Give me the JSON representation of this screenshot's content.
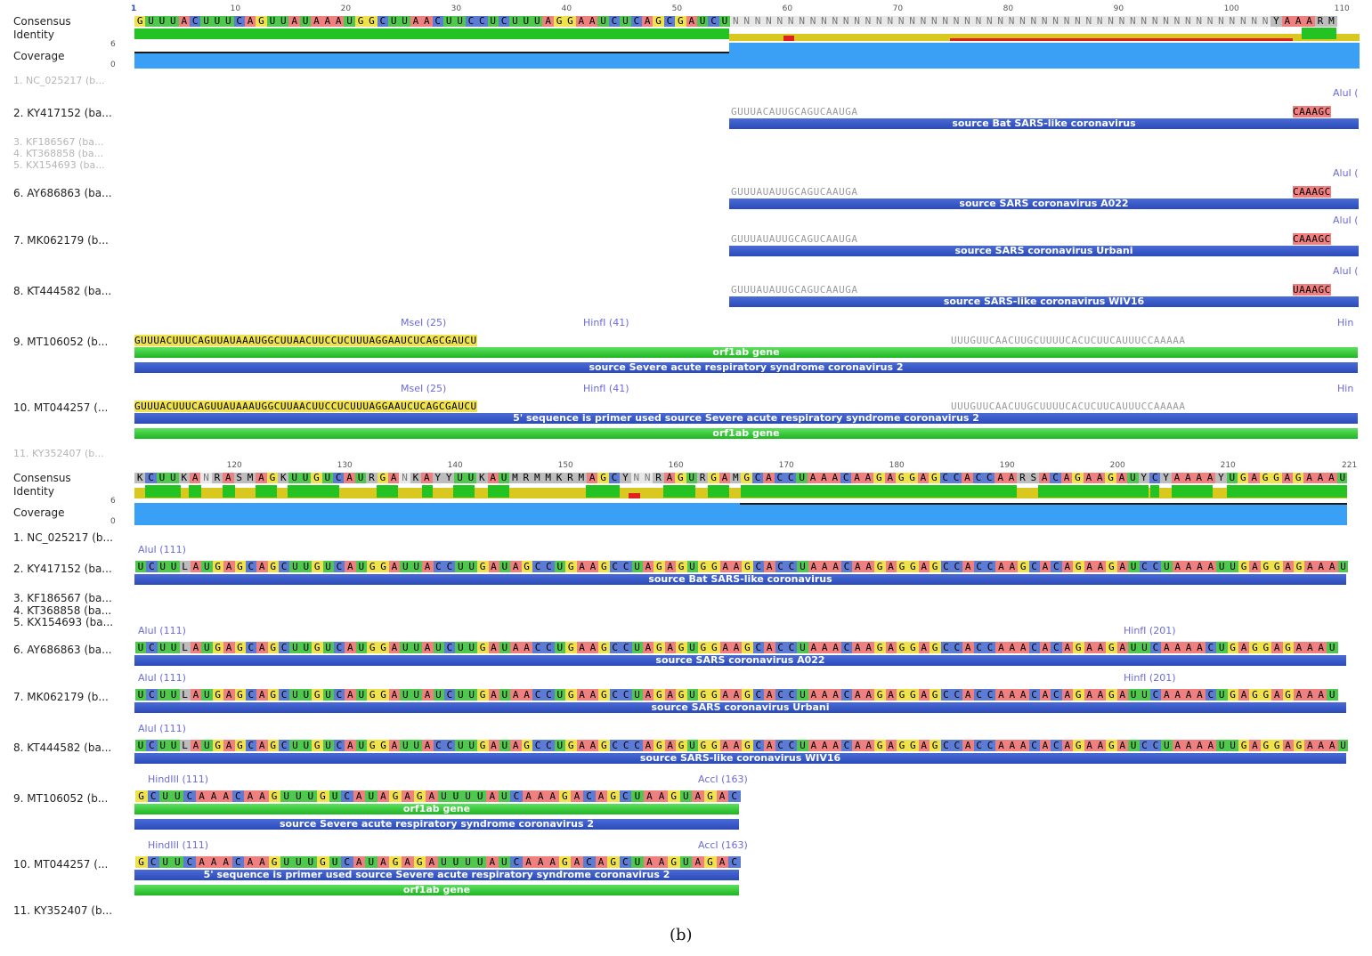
{
  "caption": "(b)",
  "panel1": {
    "row_labels": {
      "consensus": "Consensus",
      "identity": "Identity",
      "coverage": "Coverage",
      "cov_max": "6",
      "cov_min": "0"
    },
    "ticks": [
      "1",
      "10",
      "20",
      "30",
      "40",
      "50",
      "60",
      "70",
      "80",
      "90",
      "100",
      "110"
    ],
    "consensus_seq": "GUUUACUUUCAGUUAUAAAUGGCUUAACUUCCUCUUUAGGAAUCUCAGCGAUCUNNNNNNNNNNNNNNNNNNNNNNNNNNNNNNNNNNNNNNNNNNNNNNNNNYAAARM",
    "tracks": [
      {
        "label": "1. NC_025217 (b...",
        "dim": true
      },
      {
        "label": "2. KY417152 (ba...",
        "seq_right": "GUUUACAUUGCAGUCAAUGA",
        "seq_end": "CAAAGC",
        "site": "AluI (",
        "bar_blue": "source Bat SARS-like coronavirus"
      },
      {
        "label": "3. KF186567 (ba...",
        "dim": true
      },
      {
        "label": "4. KT368858 (ba...",
        "dim": true
      },
      {
        "label": "5. KX154693 (ba...",
        "dim": true
      },
      {
        "label": "6. AY686863 (ba...",
        "seq_right": "GUUUAUAUUGCAGUCAAUGA",
        "seq_end": "CAAAGC",
        "site": "AluI (",
        "bar_blue": "source SARS coronavirus A022"
      },
      {
        "label": "7. MK062179 (b...",
        "seq_right": "GUUUAUAUUGCAGUCAAUGA",
        "seq_end": "CAAAGC",
        "site": "AluI (",
        "bar_blue": "source SARS coronavirus Urbani"
      },
      {
        "label": "8. KT444582 (ba...",
        "seq_right": "GUUUAUAUUGCAGUCAAUGA",
        "seq_end": "UAAAGC",
        "site": "AluI (",
        "bar_blue": "source SARS-like coronavirus WIV16"
      },
      {
        "label": "9. MT106052 (b...",
        "seq_left": "GUUUACUUUCAGUUAUAAAUGGCUUAACUUCCUCUUUAGGAAUCUCAGCGAUCU",
        "seq_right2": "UUUGUUCAACUUGCUUUUCACUCUUCAUUUCCAAAAA",
        "sites": [
          "MseI (25)",
          "HinfI (41)",
          "Hin"
        ],
        "bar_green": "orf1ab gene",
        "bar_blue": "source Severe acute respiratory syndrome coronavirus 2"
      },
      {
        "label": "10. MT044257 (...",
        "seq_left": "GUUUACUUUCAGUUAUAAAUGGCUUAACUUCCUCUUUAGGAAUCUCAGCGAUCU",
        "seq_right2": "UUUGUUCAACUUGCUUUUCACUCUUCAUUUCCAAAAA",
        "sites": [
          "MseI (25)",
          "HinfI (41)",
          "Hin"
        ],
        "bar_blue": "5' sequence is primer used source Severe acute respiratory syndrome coronavirus 2",
        "bar_green": "orf1ab gene"
      },
      {
        "label": "11. KY352407 (b...",
        "dim": true
      }
    ]
  },
  "panel2": {
    "row_labels": {
      "consensus": "Consensus",
      "identity": "Identity",
      "coverage": "Coverage",
      "cov_max": "6",
      "cov_min": "0"
    },
    "ticks": [
      "120",
      "130",
      "140",
      "150",
      "160",
      "170",
      "180",
      "190",
      "200",
      "210",
      "221"
    ],
    "consensus_seq": "KCUUKANRASMAGKUUGUCAURGANKAYYUUKAUMRMMKRMAGCYNNRAGURGAMGCACCUAAACAAGAGGAGCCACCAARSACAGAAGAUYCYAAAAYUGAGGAGAAAU",
    "tracks": [
      {
        "label": "1. NC_025217 (b..."
      },
      {
        "label": "2. KY417152 (ba...",
        "seq": "UCUULAUGAGCAGCUUGUCAUGGAUUACCUUGAUAGCCUGAAGCCUAGAGUGGAAGCACCUAAACAAGAGGAGCCACCAAGCACAGAAGAUCCUAAAAUUGAGGAGAAAU",
        "site": "AluI (111)",
        "bar_blue": "source Bat SARS-like coronavirus"
      },
      {
        "label": "3. KF186567 (ba..."
      },
      {
        "label": "4. KT368858 (ba..."
      },
      {
        "label": "5. KX154693 (ba..."
      },
      {
        "label": "6. AY686863 (ba...",
        "seq": "UCUULAUGAGCAGCUUGUCAUGGAUUAUCUUGAUAACCUGAAGCCUAGAGUGGAAGCACCUAAACAAGAGGAGCCACCAAACACAGAAGAUUCAAAACUGAGGAGAAAU",
        "site": "AluI (111)",
        "site2": "HinfI (201)",
        "bar_blue": "source SARS coronavirus A022"
      },
      {
        "label": "7. MK062179 (b...",
        "seq": "UCUULAUGAGCAGCUUGUCAUGGAUUAUCUUGAUAACCUGAAGCCUAGAGUGGAAGCACCUAAACAAGAGGAGCCACCAAACACAGAAGAUUCAAAACUGAGGAGAAAU",
        "site": "AluI (111)",
        "site2": "HinfI (201)",
        "bar_blue": "source SARS coronavirus Urbani"
      },
      {
        "label": "8. KT444582 (ba...",
        "seq": "UCUULAUGAGCAGCUUGUCAUGGAUUACCUUGAUAGCCUGAAGCCCAGAGUGGAAGCACCUAAACAAGAGGAGCCACCAAACACAGAAGAUCCUAAAAUUGAGGAGAAAU",
        "site": "AluI (111)",
        "bar_blue": "source SARS-like coronavirus WIV16"
      },
      {
        "label": "9. MT106052 (b...",
        "seq": "GCUUCAAACAAGUUUGUCAUAGAGAUUUUAUCAAAGACAGCUAAGUAGAC",
        "site": "HindIII (111)",
        "site2": "AccI (163)",
        "bar_green": "orf1ab gene",
        "bar_blue": "source Severe acute respiratory syndrome coronavirus 2"
      },
      {
        "label": "10. MT044257 (...",
        "seq": "GCUUCAAACAAGUUUGUCAUAGAGAUUUUAUCAAAGACAGCUAAGUAGAC",
        "site": "HindIII (111)",
        "site2": "AccI (163)",
        "bar_blue": "5' sequence is primer used source Severe acute respiratory syndrome coronavirus 2",
        "bar_green": "orf1ab gene"
      },
      {
        "label": "11. KY352407 (b..."
      }
    ]
  },
  "colors": {
    "A": "#f08080",
    "C": "#5b7bd5",
    "G": "#f0e24a",
    "U": "#4ec94e",
    "N": "#c8c8c8",
    "identity_full": "#22c322",
    "identity_partial": "#d8c820",
    "identity_low": "#e02020",
    "coverage": "#3aa0f5",
    "bar_blue": "#2a4ab8",
    "bar_green": "#22c322"
  }
}
